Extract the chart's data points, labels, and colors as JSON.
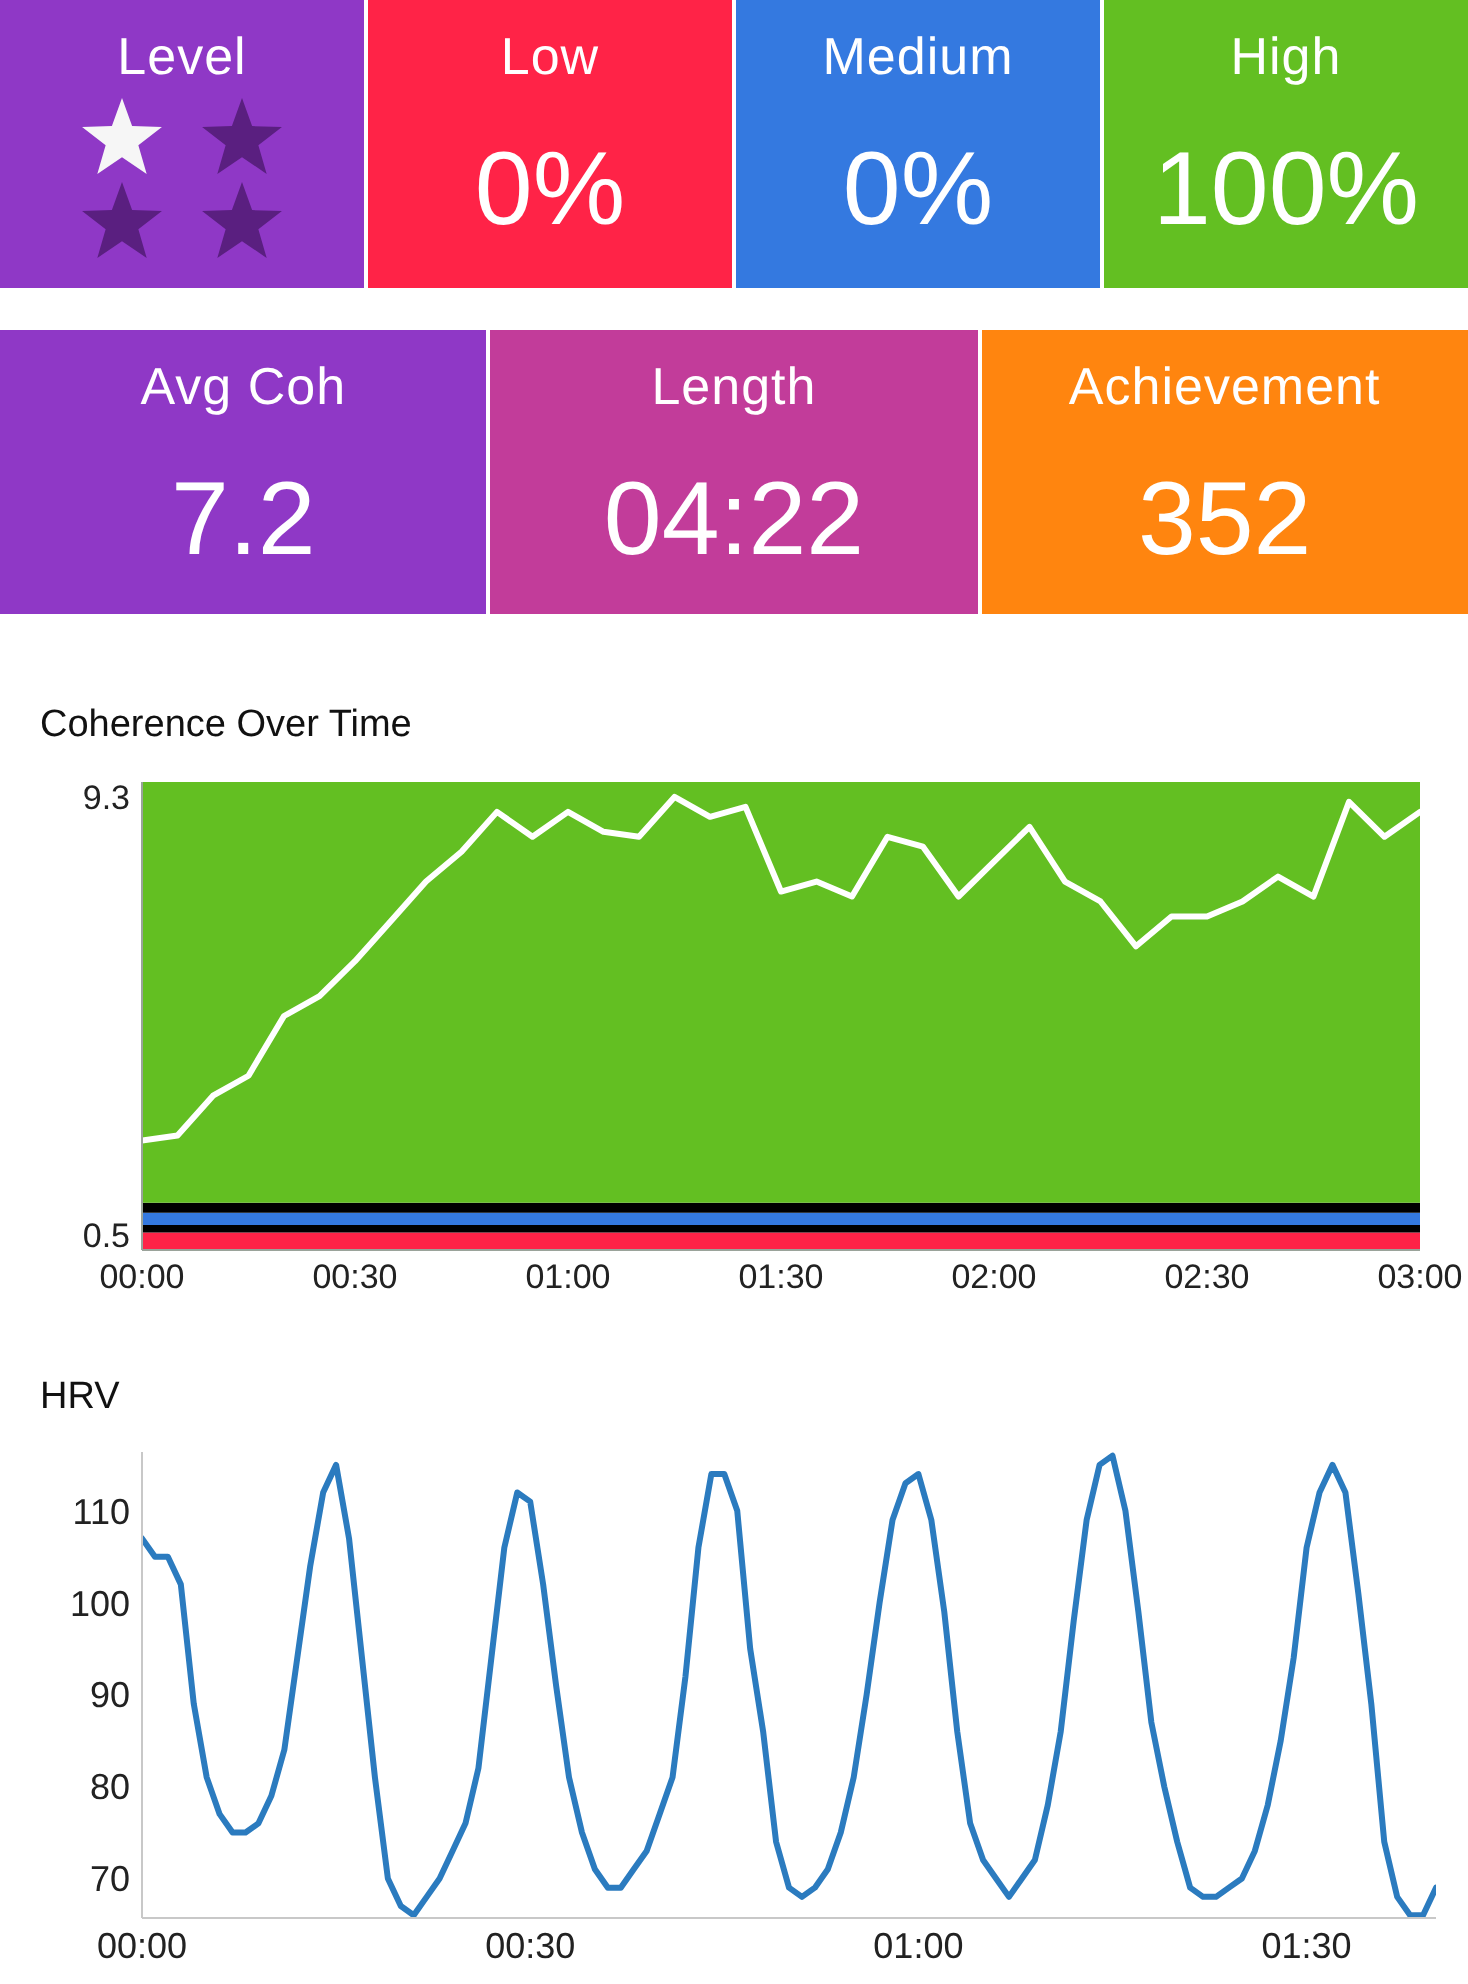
{
  "chart_data": [
    {
      "type": "other",
      "categories": [
        "Level",
        "Low",
        "Medium",
        "High"
      ],
      "value_labels": [
        null,
        "0%",
        "0%",
        "100%"
      ],
      "colors": [
        "#8f38c6",
        "#ff2347",
        "#3479e0",
        "#63bf22"
      ]
    },
    {
      "type": "other",
      "categories": [
        "Avg Coh",
        "Length",
        "Achievement"
      ],
      "value_labels": [
        "7.2",
        "04:22",
        "352"
      ],
      "colors": [
        "#8f38c6",
        "#c23c9a",
        "#ff850f"
      ]
    },
    {
      "type": "line",
      "title": "Coherence Over Time",
      "x": [
        0,
        5,
        10,
        15,
        20,
        25,
        30,
        35,
        40,
        45,
        50,
        55,
        60,
        65,
        70,
        75,
        80,
        85,
        90,
        95,
        100,
        105,
        110,
        115,
        120,
        125,
        130,
        135,
        140,
        145,
        150,
        155,
        160,
        165,
        170,
        175,
        180
      ],
      "series": [
        {
          "color": "#ffffff",
          "values": [
            2.4,
            2.5,
            3.3,
            3.7,
            4.9,
            5.3,
            6.0,
            6.8,
            7.6,
            8.2,
            9.0,
            8.5,
            9.0,
            8.6,
            8.5,
            9.3,
            8.9,
            9.1,
            7.4,
            7.6,
            7.3,
            8.5,
            8.3,
            7.3,
            8.0,
            8.7,
            7.6,
            7.2,
            6.3,
            6.9,
            6.9,
            7.2,
            7.7,
            7.3,
            9.2,
            8.5,
            9.0
          ]
        }
      ],
      "xlim": [
        0,
        180
      ],
      "xticks": [
        {
          "value": 0,
          "label": "00:00"
        },
        {
          "value": 30,
          "label": "00:30"
        },
        {
          "value": 60,
          "label": "01:00"
        },
        {
          "value": 90,
          "label": "01:30"
        },
        {
          "value": 120,
          "label": "02:00"
        },
        {
          "value": 150,
          "label": "02:30"
        },
        {
          "value": 180,
          "label": "03:00"
        }
      ],
      "ylim": [
        0.2,
        9.6
      ],
      "yticks": [
        0.5,
        9.3
      ],
      "bands": [
        {
          "axis": "y",
          "from": 0.2,
          "to": 0.55,
          "color": "#ff2347"
        },
        {
          "axis": "y",
          "from": 0.55,
          "to": 0.7,
          "color": "#000000"
        },
        {
          "axis": "y",
          "from": 0.7,
          "to": 0.95,
          "color": "#3479e0"
        },
        {
          "axis": "y",
          "from": 0.95,
          "to": 1.15,
          "color": "#000000"
        },
        {
          "axis": "y",
          "from": 1.15,
          "to": 9.6,
          "color": "#63bf22"
        }
      ]
    },
    {
      "type": "line",
      "title": "HRV",
      "x": [
        0,
        1,
        2,
        3,
        4,
        5,
        6,
        7,
        8,
        9,
        10,
        11,
        12,
        13,
        14,
        15,
        16,
        17,
        18,
        19,
        20,
        21,
        22,
        23,
        24,
        25,
        26,
        27,
        28,
        29,
        30,
        31,
        32,
        33,
        34,
        35,
        36,
        37,
        38,
        39,
        40,
        41,
        42,
        43,
        44,
        45,
        46,
        47,
        48,
        49,
        50,
        51,
        52,
        53,
        54,
        55,
        56,
        57,
        58,
        59,
        60,
        61,
        62,
        63,
        64,
        65,
        66,
        67,
        68,
        69,
        70,
        71,
        72,
        73,
        74,
        75,
        76,
        77,
        78,
        79,
        80,
        81,
        82,
        83,
        84,
        85,
        86,
        87,
        88,
        89,
        90,
        91,
        92,
        93,
        94,
        95,
        96,
        97,
        98,
        99,
        100
      ],
      "series": [
        {
          "color": "#2b7bbf",
          "values": [
            107,
            105,
            105,
            102,
            89,
            81,
            77,
            75,
            75,
            76,
            79,
            84,
            94,
            104,
            112,
            115,
            107,
            94,
            81,
            70,
            67,
            66,
            68,
            70,
            73,
            76,
            82,
            94,
            106,
            112,
            111,
            102,
            91,
            81,
            75,
            71,
            69,
            69,
            71,
            73,
            77,
            81,
            92,
            106,
            114,
            114,
            110,
            95,
            86,
            74,
            69,
            68,
            69,
            71,
            75,
            81,
            90,
            100,
            109,
            113,
            114,
            109,
            99,
            86,
            76,
            72,
            70,
            68,
            70,
            72,
            78,
            86,
            98,
            109,
            115,
            116,
            110,
            99,
            87,
            80,
            74,
            69,
            68,
            68,
            69,
            70,
            73,
            78,
            85,
            94,
            106,
            112,
            115,
            112,
            101,
            89,
            74,
            68,
            66,
            66,
            69
          ]
        }
      ],
      "xlim": [
        0,
        100
      ],
      "xticks": [
        {
          "value": 0,
          "label": "00:00"
        },
        {
          "value": 30,
          "label": "00:30"
        },
        {
          "value": 60,
          "label": "01:00"
        },
        {
          "value": 90,
          "label": "01:30"
        }
      ],
      "ylim": [
        65.7,
        116.4
      ],
      "yticks": [
        70,
        80,
        90,
        100,
        110
      ]
    }
  ]
}
